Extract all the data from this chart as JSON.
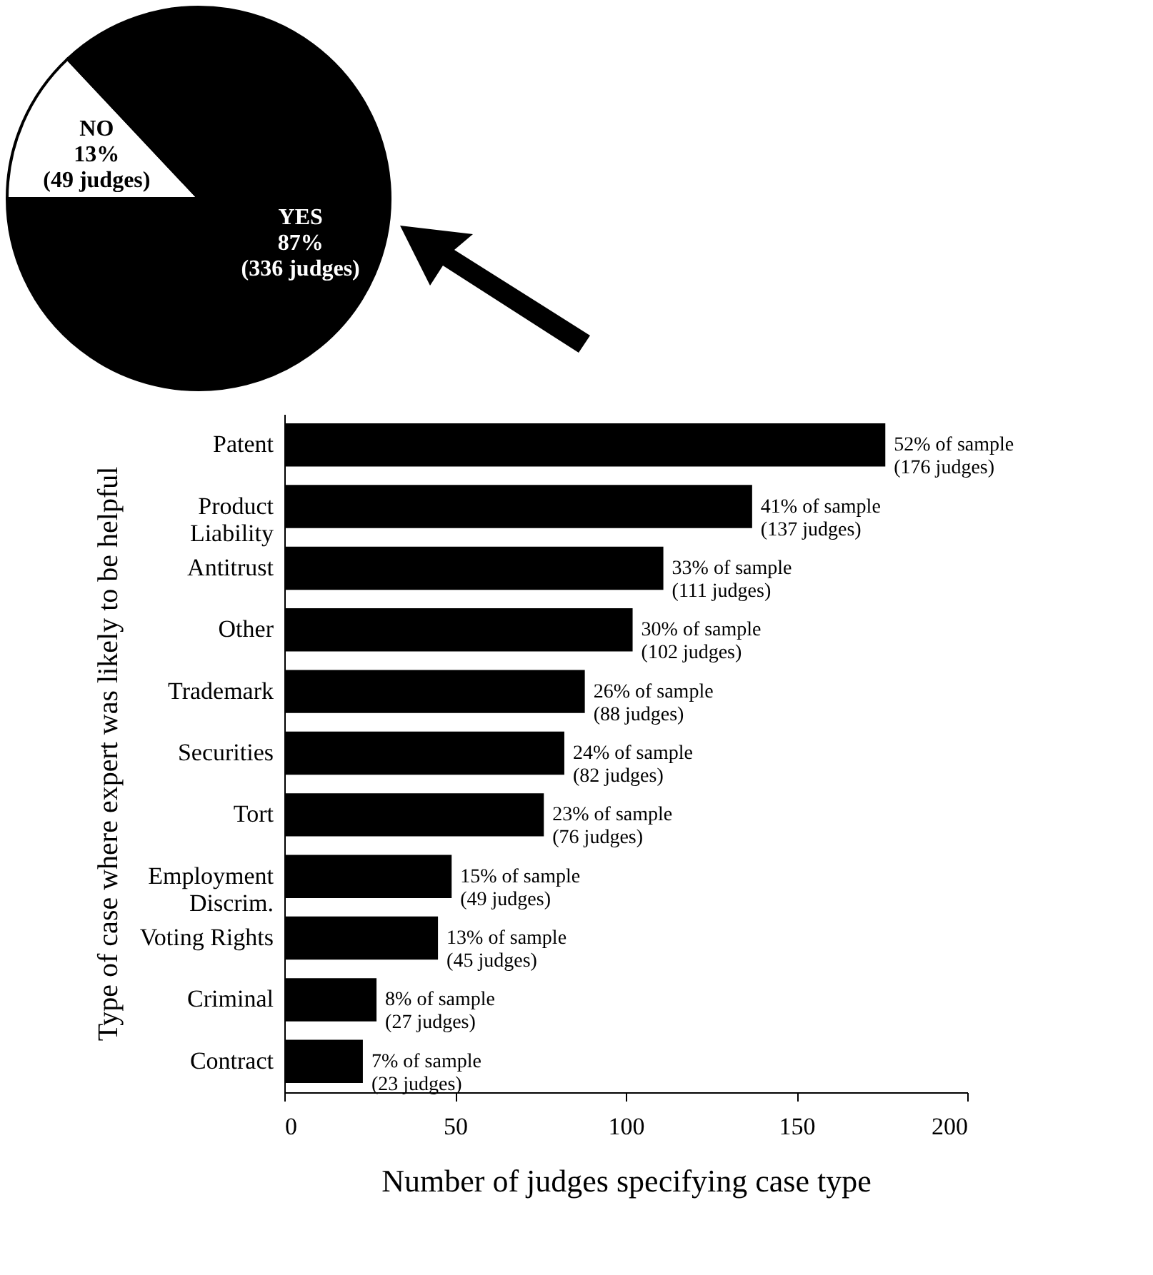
{
  "chart_data": [
    {
      "type": "pie",
      "categories": [
        "NO",
        "YES"
      ],
      "values": [
        13,
        87
      ],
      "colors": [
        "#ffffff",
        "#000000"
      ],
      "value_labels": [
        "13%\n(49 judges)",
        "87%\n(336 judges)"
      ]
    },
    {
      "type": "bar",
      "orientation": "horizontal",
      "xlabel": "Number of judges specifying case type",
      "ylabel": "Type of case where expert was likely to be helpful",
      "categories": [
        "Patent",
        "Product Liability",
        "Antitrust",
        "Other",
        "Trademark",
        "Securities",
        "Tort",
        "Employment Discrim.",
        "Voting Rights",
        "Criminal",
        "Contract"
      ],
      "values": [
        176,
        137,
        111,
        102,
        88,
        82,
        76,
        49,
        45,
        27,
        23
      ],
      "color": "#000000",
      "xlim": [
        0,
        200
      ],
      "xticks": [
        0,
        50,
        100,
        150,
        200
      ],
      "value_labels": [
        "52% of sample\n(176 judges)",
        "41% of sample\n(137 judges)",
        "33% of sample\n(111 judges)",
        "30% of sample\n(102 judges)",
        "26% of sample\n(88 judges)",
        "24% of sample\n(82 judges)",
        "23% of sample\n(76 judges)",
        "15% of sample\n(49 judges)",
        "13% of sample\n(45 judges)",
        "8% of sample\n(27 judges)",
        "7% of sample\n(23 judges)"
      ]
    }
  ]
}
